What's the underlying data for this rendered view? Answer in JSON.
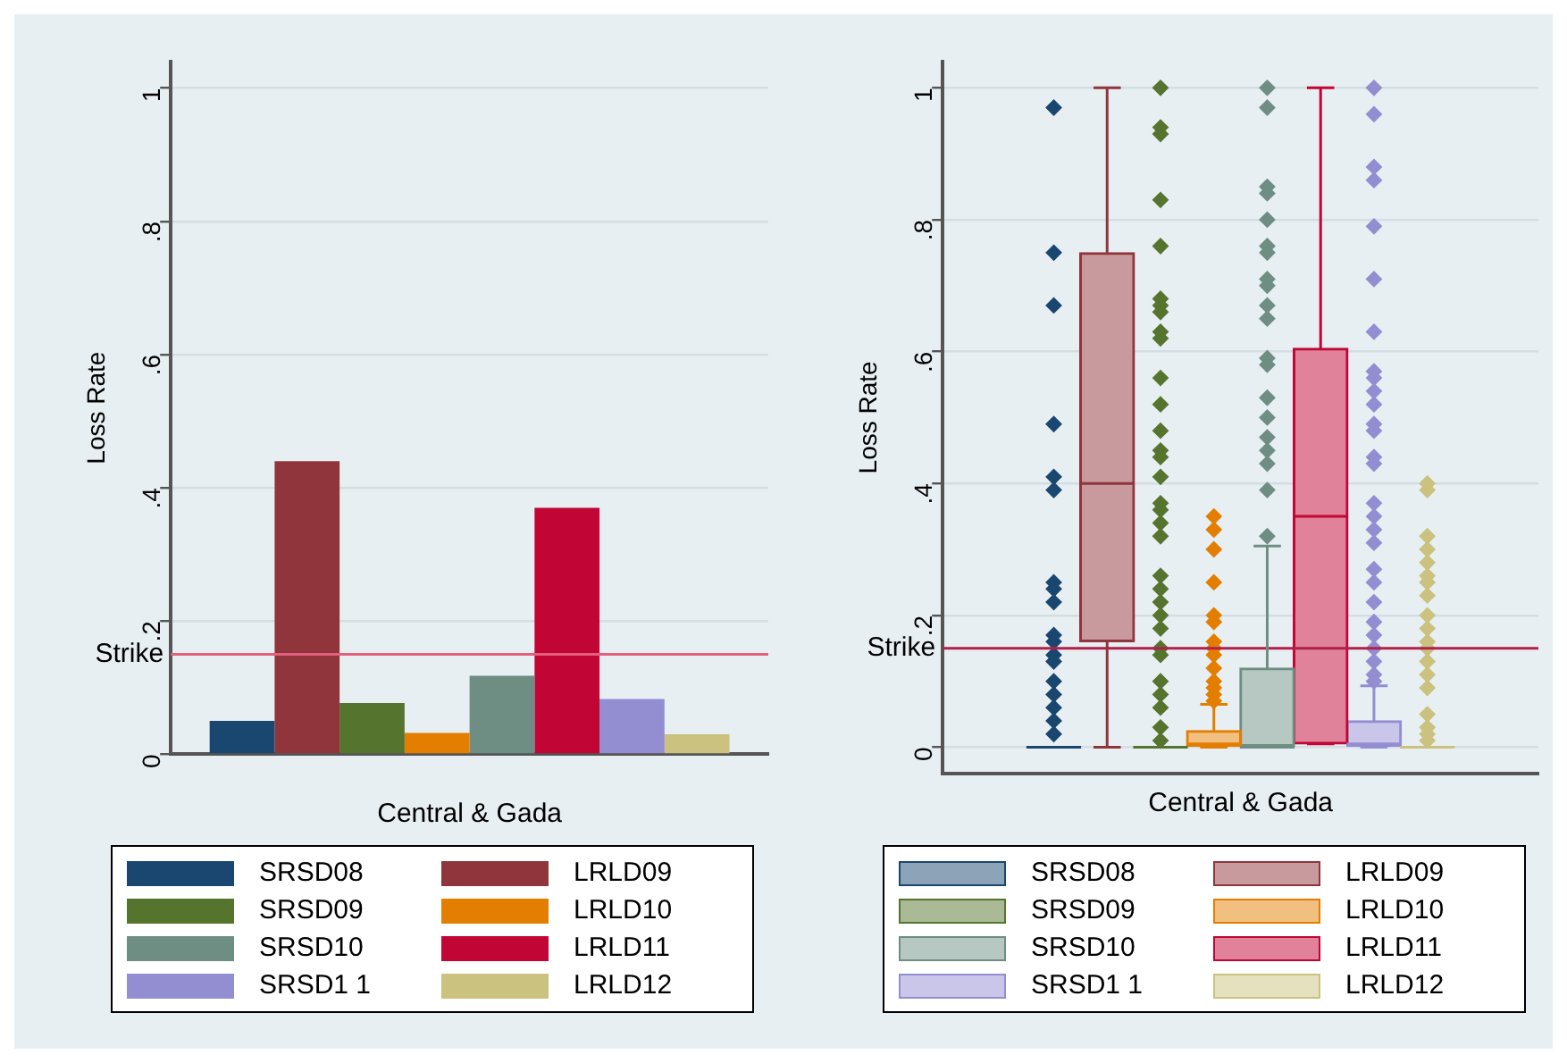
{
  "chart_data": [
    {
      "type": "bar",
      "xlabel": "Central & Gada",
      "ylabel": "Loss Rate",
      "categories": [
        null
      ],
      "ylim": [
        0,
        1.04
      ],
      "yticks": [
        {
          "value": 0,
          "label": "0"
        },
        {
          "value": 0.2,
          "label": ".2"
        },
        {
          "value": 0.4,
          "label": ".4"
        },
        {
          "value": 0.6,
          "label": ".6"
        },
        {
          "value": 0.8,
          "label": ".8"
        },
        {
          "value": 1,
          "label": "1"
        }
      ],
      "grid": "y",
      "legend": "bottom",
      "ref_lines": [
        {
          "axis": "y",
          "value": 0.15,
          "label": "Strike",
          "color": "#e0607e"
        }
      ],
      "series": [
        {
          "name": "SRSD08",
          "color": "#1a476f",
          "values": [
            0.05
          ]
        },
        {
          "name": "LRLD09",
          "color": "#90353b",
          "values": [
            0.44
          ]
        },
        {
          "name": "SRSD09",
          "color": "#55752f",
          "values": [
            0.077
          ]
        },
        {
          "name": "LRLD10",
          "color": "#e37e00",
          "values": [
            0.032
          ]
        },
        {
          "name": "SRSD10",
          "color": "#6e8e84",
          "values": [
            0.118
          ]
        },
        {
          "name": "LRLD11",
          "color": "#c10534",
          "values": [
            0.37
          ]
        },
        {
          "name": "SRSD1 1",
          "color": "#938dd2",
          "values": [
            0.083
          ]
        },
        {
          "name": "LRLD12",
          "color": "#cac27e",
          "values": [
            0.03
          ]
        }
      ]
    },
    {
      "type": "box",
      "xlabel": "Central & Gada",
      "ylabel": "Loss Rate",
      "categories": [
        null
      ],
      "ylim": [
        -0.04,
        1.04
      ],
      "yticks": [
        {
          "value": 0,
          "label": "0"
        },
        {
          "value": 0.2,
          "label": ".2"
        },
        {
          "value": 0.4,
          "label": ".4"
        },
        {
          "value": 0.6,
          "label": ".6"
        },
        {
          "value": 0.8,
          "label": ".8"
        },
        {
          "value": 1,
          "label": "1"
        }
      ],
      "grid": "y",
      "legend": "bottom",
      "marker": "diamond",
      "ref_lines": [
        {
          "axis": "y",
          "value": 0.15,
          "label": "Strike",
          "color": "#b0204a"
        }
      ],
      "series": [
        {
          "name": "SRSD08",
          "color": "#1a476f",
          "boxes": [
            {
              "low": 0,
              "q1": 0,
              "median": 0,
              "q3": 0,
              "high": 0,
              "outliers": [
                0.97,
                0.75,
                0.67,
                0.49,
                0.41,
                0.39,
                0.25,
                0.24,
                0.22,
                0.17,
                0.16,
                0.14,
                0.13,
                0.1,
                0.08,
                0.06,
                0.04,
                0.02
              ]
            }
          ]
        },
        {
          "name": "LRLD09",
          "color": "#90353b",
          "boxes": [
            {
              "low": 0,
              "q1": 0.16,
              "median": 0.4,
              "q3": 0.75,
              "high": 1
            }
          ]
        },
        {
          "name": "SRSD09",
          "color": "#55752f",
          "boxes": [
            {
              "low": 0,
              "q1": 0,
              "median": 0,
              "q3": 0,
              "high": 0,
              "outliers": [
                1,
                0.94,
                0.93,
                0.83,
                0.76,
                0.68,
                0.67,
                0.66,
                0.63,
                0.62,
                0.56,
                0.52,
                0.48,
                0.45,
                0.44,
                0.41,
                0.37,
                0.36,
                0.34,
                0.32,
                0.26,
                0.24,
                0.22,
                0.2,
                0.18,
                0.15,
                0.14,
                0.1,
                0.08,
                0.06,
                0.03,
                0.01
              ]
            }
          ]
        },
        {
          "name": "LRLD10",
          "color": "#e37e00",
          "boxes": [
            {
              "low": 0,
              "q1": 0,
              "median": 0.005,
              "q3": 0.025,
              "high": 0.065,
              "outliers": [
                0.35,
                0.33,
                0.3,
                0.25,
                0.2,
                0.19,
                0.16,
                0.15,
                0.14,
                0.12,
                0.1,
                0.09,
                0.08,
                0.07
              ]
            }
          ]
        },
        {
          "name": "SRSD10",
          "color": "#6e8e84",
          "boxes": [
            {
              "low": 0,
              "q1": 0,
              "median": 0,
              "q3": 0.12,
              "high": 0.305,
              "outliers": [
                0.32,
                0.39,
                0.43,
                0.45,
                0.47,
                0.5,
                0.53,
                0.58,
                0.59,
                0.65,
                0.67,
                0.7,
                0.71,
                0.75,
                0.76,
                0.8,
                0.84,
                0.85,
                0.97,
                1
              ]
            }
          ]
        },
        {
          "name": "LRLD11",
          "color": "#c10534",
          "boxes": [
            {
              "low": 0.005,
              "q1": 0.005,
              "median": 0.35,
              "q3": 0.605,
              "high": 1
            }
          ]
        },
        {
          "name": "SRSD1 1",
          "color": "#938dd2",
          "boxes": [
            {
              "low": 0,
              "q1": 0,
              "median": 0.005,
              "q3": 0.04,
              "high": 0.093,
              "outliers": [
                1,
                0.96,
                0.88,
                0.86,
                0.79,
                0.71,
                0.63,
                0.57,
                0.56,
                0.54,
                0.52,
                0.49,
                0.48,
                0.44,
                0.43,
                0.37,
                0.35,
                0.33,
                0.31,
                0.27,
                0.25,
                0.22,
                0.19,
                0.17,
                0.15,
                0.13,
                0.11,
                0.1
              ]
            }
          ]
        },
        {
          "name": "LRLD12",
          "color": "#cac27e",
          "boxes": [
            {
              "low": 0,
              "q1": 0,
              "median": 0,
              "q3": 0,
              "high": 0,
              "outliers": [
                0.4,
                0.39,
                0.32,
                0.3,
                0.28,
                0.26,
                0.25,
                0.23,
                0.2,
                0.18,
                0.16,
                0.15,
                0.13,
                0.11,
                0.09,
                0.05,
                0.03,
                0.02,
                0.01
              ]
            }
          ]
        }
      ]
    }
  ]
}
